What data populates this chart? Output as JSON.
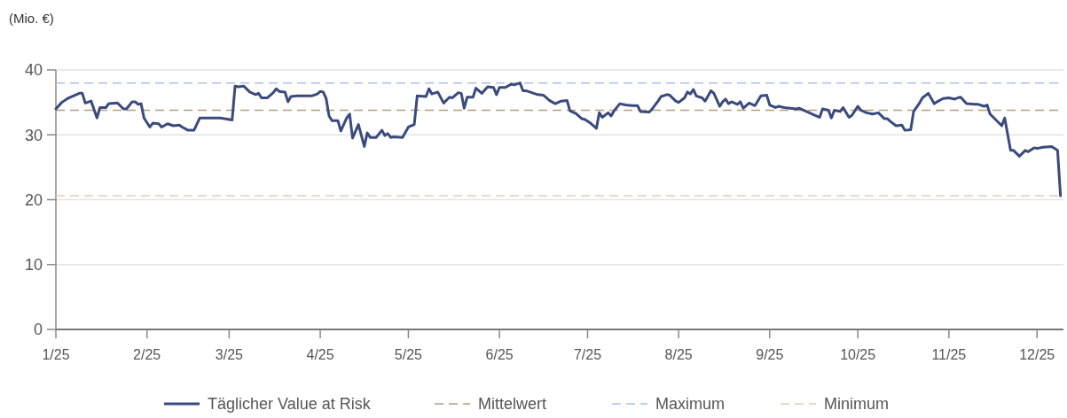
{
  "chart_data": {
    "type": "line",
    "ylabel": "(Mio. €)",
    "xlim": [
      "2025-01-01",
      "2025-12-10"
    ],
    "xticks": [
      {
        "value": "2025-01-01",
        "label": "1/25"
      },
      {
        "value": "2025-02-01",
        "label": "2/25"
      },
      {
        "value": "2025-03-01",
        "label": "3/25"
      },
      {
        "value": "2025-04-01",
        "label": "4/25"
      },
      {
        "value": "2025-05-01",
        "label": "5/25"
      },
      {
        "value": "2025-06-01",
        "label": "6/25"
      },
      {
        "value": "2025-07-01",
        "label": "7/25"
      },
      {
        "value": "2025-08-01",
        "label": "8/25"
      },
      {
        "value": "2025-09-01",
        "label": "9/25"
      },
      {
        "value": "2025-10-01",
        "label": "10/25"
      },
      {
        "value": "2025-11-01",
        "label": "11/25"
      },
      {
        "value": "2025-12-01",
        "label": "12/25"
      }
    ],
    "ylim": [
      0,
      40
    ],
    "yticks": [
      0,
      10,
      20,
      30,
      40
    ],
    "grid": "y",
    "legend": "bottom",
    "series": [
      {
        "name": "Täglicher Value at Risk",
        "color": "#3b4a7d",
        "x": [
          "2025-01-01",
          "2025-01-03",
          "2025-01-05",
          "2025-01-09",
          "2025-01-10",
          "2025-01-11",
          "2025-01-13",
          "2025-01-15",
          "2025-01-16",
          "2025-01-18",
          "2025-01-19",
          "2025-01-22",
          "2025-01-24",
          "2025-01-25",
          "2025-01-27",
          "2025-01-28",
          "2025-01-29",
          "2025-01-30",
          "2025-01-31",
          "2025-02-02",
          "2025-02-03",
          "2025-02-05",
          "2025-02-06",
          "2025-02-08",
          "2025-02-10",
          "2025-02-12",
          "2025-02-13",
          "2025-02-15",
          "2025-02-17",
          "2025-02-19",
          "2025-02-26",
          "2025-03-02",
          "2025-03-03",
          "2025-03-04",
          "2025-03-06",
          "2025-03-08",
          "2025-03-10",
          "2025-03-11",
          "2025-03-12",
          "2025-03-14",
          "2025-03-16",
          "2025-03-17",
          "2025-03-18",
          "2025-03-20",
          "2025-03-21",
          "2025-03-22",
          "2025-03-24",
          "2025-03-26",
          "2025-03-29",
          "2025-03-31",
          "2025-04-01",
          "2025-04-02",
          "2025-04-03",
          "2025-04-04",
          "2025-04-05",
          "2025-04-07",
          "2025-04-08",
          "2025-04-10",
          "2025-04-11",
          "2025-04-12",
          "2025-04-14",
          "2025-04-16",
          "2025-04-17",
          "2025-04-18",
          "2025-04-20",
          "2025-04-22",
          "2025-04-23",
          "2025-04-24",
          "2025-04-25",
          "2025-04-26",
          "2025-04-29",
          "2025-05-01",
          "2025-05-03",
          "2025-05-04",
          "2025-05-07",
          "2025-05-08",
          "2025-05-09",
          "2025-05-11",
          "2025-05-13",
          "2025-05-15",
          "2025-05-16",
          "2025-05-18",
          "2025-05-19",
          "2025-05-20",
          "2025-05-21",
          "2025-05-23",
          "2025-05-24",
          "2025-05-26",
          "2025-05-28",
          "2025-05-30",
          "2025-05-31",
          "2025-06-01",
          "2025-06-03",
          "2025-06-05",
          "2025-06-06",
          "2025-06-08",
          "2025-06-09",
          "2025-06-10",
          "2025-06-12",
          "2025-06-14",
          "2025-06-16",
          "2025-06-17",
          "2025-06-18",
          "2025-06-20",
          "2025-06-22",
          "2025-06-24",
          "2025-06-25",
          "2025-06-27",
          "2025-06-29",
          "2025-06-30",
          "2025-07-02",
          "2025-07-04",
          "2025-07-05",
          "2025-07-06",
          "2025-07-08",
          "2025-07-09",
          "2025-07-10",
          "2025-07-12",
          "2025-07-14",
          "2025-07-16",
          "2025-07-18",
          "2025-07-19",
          "2025-07-22",
          "2025-07-23",
          "2025-07-25",
          "2025-07-26",
          "2025-07-28",
          "2025-07-29",
          "2025-07-31",
          "2025-08-01",
          "2025-08-03",
          "2025-08-04",
          "2025-08-05",
          "2025-08-06",
          "2025-08-07",
          "2025-08-09",
          "2025-08-10",
          "2025-08-12",
          "2025-08-13",
          "2025-08-15",
          "2025-08-16",
          "2025-08-17",
          "2025-08-18",
          "2025-08-19",
          "2025-08-21",
          "2025-08-22",
          "2025-08-23",
          "2025-08-25",
          "2025-08-27",
          "2025-08-29",
          "2025-08-31",
          "2025-09-01",
          "2025-09-03",
          "2025-09-04",
          "2025-09-06",
          "2025-09-08",
          "2025-09-10",
          "2025-09-11",
          "2025-09-13",
          "2025-09-15",
          "2025-09-17",
          "2025-09-18",
          "2025-09-19",
          "2025-09-21",
          "2025-09-22",
          "2025-09-23",
          "2025-09-25",
          "2025-09-26",
          "2025-09-28",
          "2025-09-29",
          "2025-10-01",
          "2025-10-02",
          "2025-10-04",
          "2025-10-06",
          "2025-10-08",
          "2025-10-10",
          "2025-10-11",
          "2025-10-12",
          "2025-10-14",
          "2025-10-16",
          "2025-10-17",
          "2025-10-19",
          "2025-10-20",
          "2025-10-22",
          "2025-10-23",
          "2025-10-25",
          "2025-10-27",
          "2025-10-28",
          "2025-10-30",
          "2025-11-01",
          "2025-11-03",
          "2025-11-04",
          "2025-11-05",
          "2025-11-07",
          "2025-11-10",
          "2025-11-11",
          "2025-11-13",
          "2025-11-14",
          "2025-11-15",
          "2025-11-19",
          "2025-11-20",
          "2025-11-22",
          "2025-11-23",
          "2025-11-25",
          "2025-11-27",
          "2025-11-28",
          "2025-11-30",
          "2025-12-01",
          "2025-12-03",
          "2025-12-06",
          "2025-12-08",
          "2025-12-09"
        ],
        "values": [
          34.0,
          35.0,
          35.6,
          36.4,
          36.4,
          34.9,
          35.2,
          32.6,
          34.2,
          34.2,
          34.8,
          34.9,
          34.0,
          34.0,
          35.1,
          35.1,
          34.7,
          34.8,
          32.6,
          31.2,
          31.8,
          31.7,
          31.2,
          31.7,
          31.4,
          31.5,
          31.2,
          30.7,
          30.7,
          32.6,
          32.6,
          32.3,
          37.5,
          37.4,
          37.5,
          36.6,
          36.2,
          36.4,
          35.7,
          35.7,
          36.5,
          37.1,
          36.7,
          36.6,
          35.1,
          35.9,
          36.0,
          36.0,
          36.0,
          36.3,
          36.7,
          36.6,
          35.6,
          32.9,
          32.2,
          32.2,
          30.6,
          32.6,
          33.2,
          29.5,
          31.6,
          28.2,
          30.3,
          29.6,
          29.6,
          30.7,
          29.9,
          30.2,
          29.6,
          29.7,
          29.6,
          31.2,
          31.6,
          36.0,
          35.9,
          37.1,
          36.3,
          36.6,
          34.9,
          35.8,
          35.7,
          36.5,
          36.4,
          34.1,
          35.8,
          35.8,
          37.2,
          36.4,
          37.4,
          37.3,
          36.2,
          37.3,
          37.3,
          37.8,
          37.7,
          38.0,
          36.8,
          36.8,
          36.5,
          36.2,
          36.1,
          35.7,
          35.3,
          34.8,
          35.2,
          35.3,
          33.7,
          33.3,
          32.5,
          32.4,
          31.8,
          31.0,
          33.4,
          32.7,
          33.4,
          32.9,
          33.7,
          34.8,
          34.6,
          34.5,
          34.5,
          33.6,
          33.5,
          34.0,
          35.2,
          35.9,
          36.2,
          36.1,
          35.2,
          35.0,
          35.7,
          36.6,
          36.3,
          37.0,
          36.0,
          35.7,
          35.2,
          36.8,
          36.4,
          34.4,
          35.1,
          35.5,
          34.8,
          35.1,
          34.7,
          35.1,
          34.1,
          34.9,
          34.5,
          36.0,
          36.1,
          34.6,
          34.2,
          34.4,
          34.2,
          34.1,
          34.0,
          34.1,
          33.7,
          33.3,
          32.9,
          32.7,
          34.0,
          33.8,
          32.6,
          33.8,
          33.6,
          34.2,
          32.7,
          33.0,
          34.4,
          33.8,
          33.4,
          33.2,
          33.4,
          32.5,
          32.5,
          32.1,
          31.4,
          31.5,
          30.7,
          30.8,
          33.6,
          34.9,
          35.7,
          36.4,
          34.8,
          35.1,
          35.6,
          35.7,
          35.5,
          35.7,
          35.8,
          34.8,
          34.7,
          34.7,
          34.4,
          34.6,
          33.2,
          31.4,
          32.6,
          27.6,
          27.6,
          26.7,
          27.6,
          27.4,
          28.0,
          27.9,
          28.1,
          28.2,
          27.6,
          20.6
        ]
      }
    ],
    "line_style": "solid",
    "ref_lines": [
      {
        "axis": "y",
        "value": 33.8,
        "label": "Mittelwert",
        "color": "#b89a80",
        "line_style": "dashed"
      },
      {
        "axis": "y",
        "value": 38.0,
        "label": "Maximum",
        "color": "#a9bff0",
        "line_style": "dashed"
      },
      {
        "axis": "y",
        "value": 20.6,
        "label": "Minimum",
        "color": "#e6cbb5",
        "line_style": "dashed"
      }
    ]
  }
}
